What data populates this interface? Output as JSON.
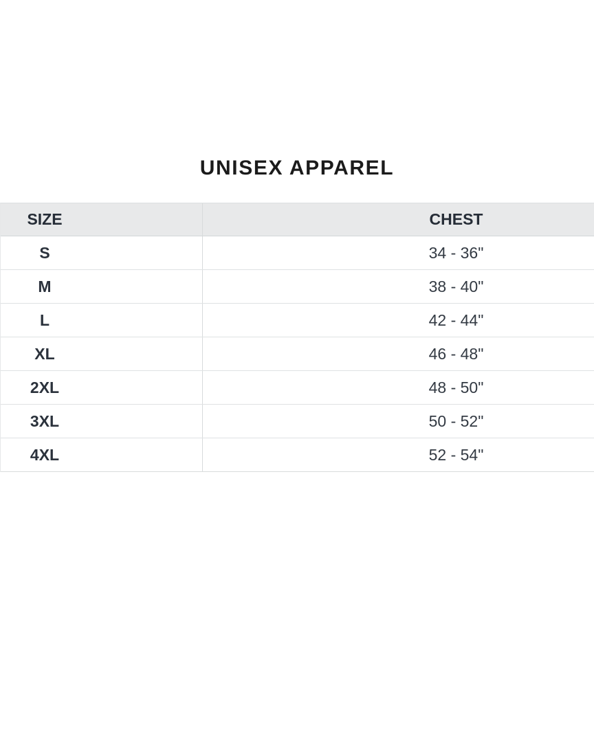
{
  "title": "UNISEX APPAREL",
  "size_chart": {
    "headers": {
      "size": "SIZE",
      "chest": "CHEST"
    },
    "rows": [
      {
        "size": "S",
        "chest": "34 - 36\""
      },
      {
        "size": "M",
        "chest": "38 - 40\""
      },
      {
        "size": "L",
        "chest": "42 - 44\""
      },
      {
        "size": "XL",
        "chest": "46 - 48\""
      },
      {
        "size": "2XL",
        "chest": "48 - 50\""
      },
      {
        "size": "3XL",
        "chest": "50 - 52\""
      },
      {
        "size": "4XL",
        "chest": "52 - 54\""
      }
    ],
    "colors": {
      "page_background": "#ffffff",
      "header_background": "#e8e9ea",
      "border": "#d8dbdc",
      "row_border": "#dfe2e3",
      "header_text": "#262d37",
      "cell_text": "#2b323c",
      "title_text": "#1b1b1b"
    }
  }
}
